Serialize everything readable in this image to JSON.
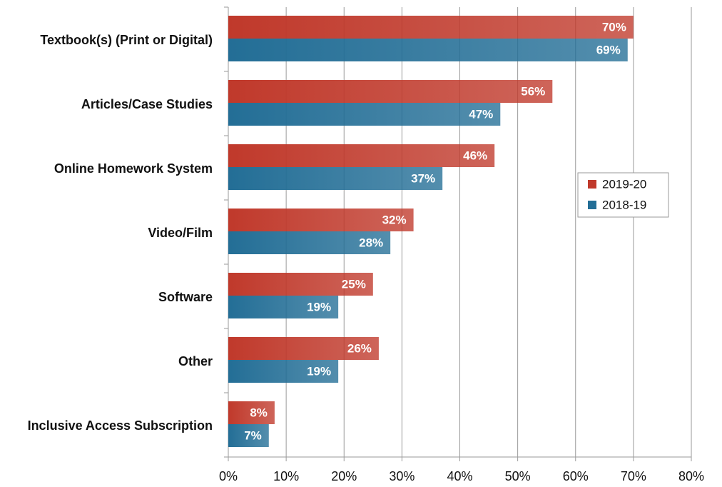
{
  "chart_data": {
    "type": "bar",
    "orientation": "horizontal",
    "categories": [
      "Textbook(s) (Print or Digital)",
      "Articles/Case Studies",
      "Online Homework System",
      "Video/Film",
      "Software",
      "Other",
      "Inclusive Access Subscription"
    ],
    "series": [
      {
        "name": "2019-20",
        "color": "#c0392b",
        "values": [
          70,
          56,
          46,
          32,
          25,
          26,
          8
        ],
        "value_labels": [
          "70%",
          "56%",
          "46%",
          "32%",
          "25%",
          "26%",
          "8%"
        ]
      },
      {
        "name": "2018-19",
        "color": "#236e96",
        "values": [
          69,
          47,
          37,
          28,
          19,
          19,
          7
        ],
        "value_labels": [
          "69%",
          "47%",
          "37%",
          "28%",
          "19%",
          "19%",
          "7%"
        ]
      }
    ],
    "xlim": [
      0,
      80
    ],
    "xticks": [
      {
        "value": 0,
        "label": "0%"
      },
      {
        "value": 10,
        "label": "10%"
      },
      {
        "value": 20,
        "label": "20%"
      },
      {
        "value": 30,
        "label": "30%"
      },
      {
        "value": 40,
        "label": "40%"
      },
      {
        "value": 50,
        "label": "50%"
      },
      {
        "value": 60,
        "label": "60%"
      },
      {
        "value": 70,
        "label": "70%"
      },
      {
        "value": 80,
        "label": "80%"
      }
    ],
    "grid": true,
    "legend": "right"
  }
}
